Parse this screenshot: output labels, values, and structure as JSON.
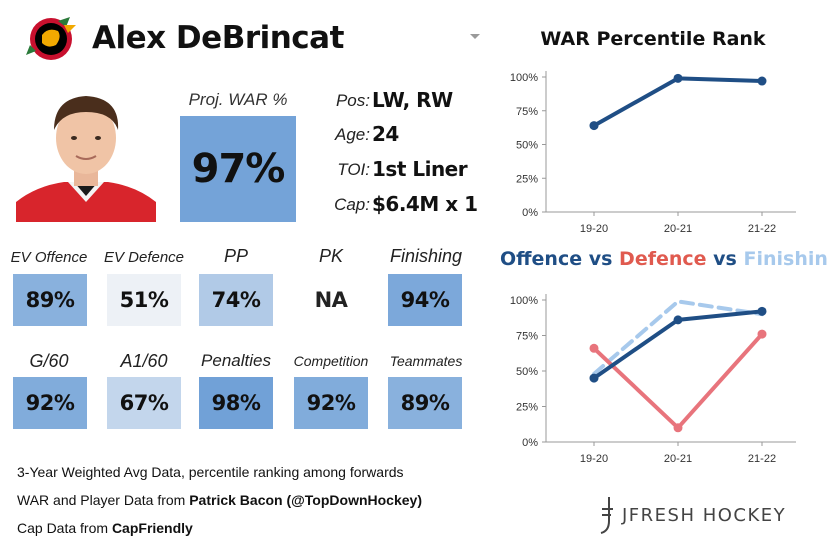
{
  "player": {
    "name": "Alex DeBrincat",
    "proj_war_label": "Proj. WAR %",
    "proj_war_value": "97%",
    "proj_war_level": 97
  },
  "info": [
    {
      "label": "Pos:",
      "value": "LW, RW"
    },
    {
      "label": "Age:",
      "value": "24"
    },
    {
      "label": "TOI:",
      "value": "1st Liner"
    },
    {
      "label": "Cap:",
      "value": "$6.4M x 1"
    }
  ],
  "stats_row1": [
    {
      "label": "EV Offence",
      "value": "89%",
      "level": 89
    },
    {
      "label": "EV Defence",
      "value": "51%",
      "level": 51
    },
    {
      "label": "PP",
      "value": "74%",
      "level": 74
    },
    {
      "label": "PK",
      "value": "NA",
      "level": null
    },
    {
      "label": "Finishing",
      "value": "94%",
      "level": 94
    }
  ],
  "stats_row2": [
    {
      "label": "G/60",
      "value": "92%",
      "level": 92
    },
    {
      "label": "A1/60",
      "value": "67%",
      "level": 67
    },
    {
      "label": "Penalties",
      "value": "98%",
      "level": 98
    },
    {
      "label": "Competition",
      "value": "92%",
      "level": 92
    },
    {
      "label": "Teammates",
      "value": "89%",
      "level": 89
    }
  ],
  "footer": {
    "line1": "3-Year Weighted Avg Data, percentile ranking among forwards",
    "line2_prefix": "WAR and Player Data from ",
    "line2_bold": "Patrick Bacon (@TopDownHockey)",
    "line3_prefix": "Cap Data from ",
    "line3_bold": "CapFriendly"
  },
  "brand": "JFRESH HOCKEY",
  "colors": {
    "dark_blue": "#1f4e85",
    "red": "#e8747c",
    "light_blue": "#a7c9ec"
  },
  "chart_data": [
    {
      "type": "line",
      "title": "WAR Percentile Rank",
      "categories": [
        "19-20",
        "20-21",
        "21-22"
      ],
      "y_ticks": [
        "0%",
        "25%",
        "50%",
        "75%",
        "100%"
      ],
      "ylim": [
        0,
        100
      ],
      "grid": false,
      "series": [
        {
          "values": [
            64,
            99,
            97
          ],
          "color": "#1f4e85",
          "style": "solid"
        }
      ]
    },
    {
      "type": "line",
      "title_parts": [
        {
          "text": "Offence",
          "color": "#1f4e85"
        },
        {
          "text": " vs ",
          "color": "#1f4e85"
        },
        {
          "text": "Defence",
          "color": "#e05a4f"
        },
        {
          "text": " vs ",
          "color": "#1f4e85"
        },
        {
          "text": "Finishing",
          "color": "#a7c9ec"
        }
      ],
      "categories": [
        "19-20",
        "20-21",
        "21-22"
      ],
      "y_ticks": [
        "0%",
        "25%",
        "50%",
        "75%",
        "100%"
      ],
      "ylim": [
        0,
        100
      ],
      "grid": false,
      "series": [
        {
          "name": "Finishing",
          "values": [
            48,
            99,
            90
          ],
          "color": "#a7c9ec",
          "style": "dashed"
        },
        {
          "name": "Defence",
          "values": [
            66,
            10,
            76
          ],
          "color": "#e8747c",
          "style": "solid"
        },
        {
          "name": "Offence",
          "values": [
            45,
            86,
            92
          ],
          "color": "#1f4e85",
          "style": "solid"
        }
      ]
    }
  ]
}
